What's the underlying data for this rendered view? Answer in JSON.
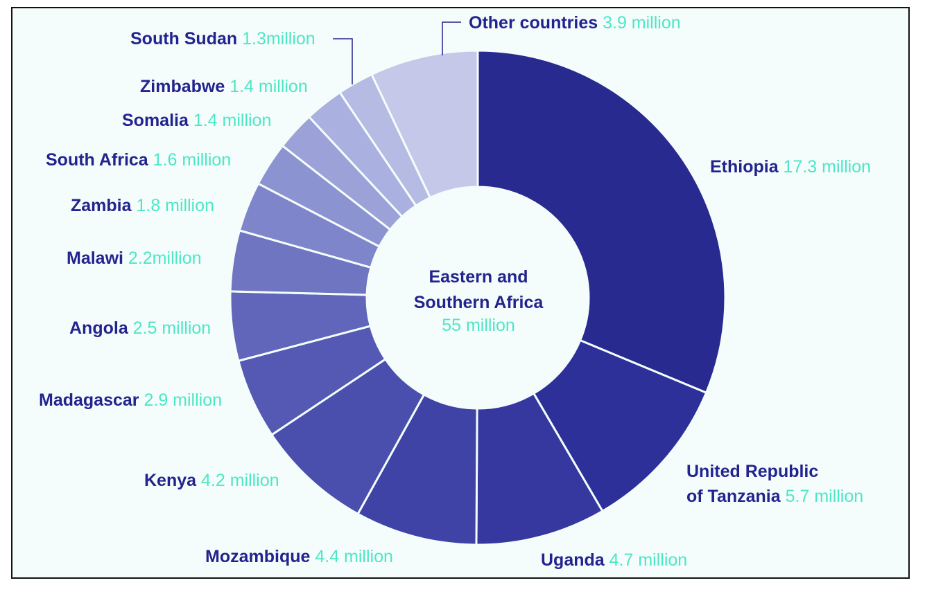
{
  "chart_data": {
    "type": "pie",
    "center_label": {
      "line1": "Eastern and",
      "line2": "Southern Africa",
      "value": "55 million",
      "total": 55
    },
    "slices": [
      {
        "name": "Ethiopia",
        "value_label": "17.3 million",
        "value": 17.3,
        "color": "#282a8f"
      },
      {
        "name": "United Republic of Tanzania",
        "name_lines": [
          "United Republic",
          "of Tanzania"
        ],
        "value_label": "5.7 million",
        "value": 5.7,
        "color": "#2e309a"
      },
      {
        "name": "Uganda",
        "value_label": "4.7 million",
        "value": 4.7,
        "color": "#3638a0"
      },
      {
        "name": "Mozambique",
        "value_label": "4.4 million",
        "value": 4.4,
        "color": "#3f43a6"
      },
      {
        "name": "Kenya",
        "value_label": "4.2 million",
        "value": 4.2,
        "color": "#4a4fae"
      },
      {
        "name": "Madagascar",
        "value_label": "2.9 million",
        "value": 2.9,
        "color": "#5559b3"
      },
      {
        "name": "Angola",
        "value_label": "2.5 million",
        "value": 2.5,
        "color": "#6166ba"
      },
      {
        "name": "Malawi",
        "value_label": "2.2million",
        "value": 2.2,
        "color": "#7075c2"
      },
      {
        "name": "Zambia",
        "value_label": "1.8 million",
        "value": 1.8,
        "color": "#7f85ca"
      },
      {
        "name": "South Africa",
        "value_label": "1.6 million",
        "value": 1.6,
        "color": "#8c93d1"
      },
      {
        "name": "Somalia",
        "value_label": "1.4 million",
        "value": 1.4,
        "color": "#9ca2d8"
      },
      {
        "name": "Zimbabwe",
        "value_label": "1.4 million",
        "value": 1.4,
        "color": "#aab0df"
      },
      {
        "name": "South Sudan",
        "value_label": "1.3million",
        "value": 1.3,
        "color": "#b5bbe3"
      },
      {
        "name": "Other countries",
        "value_label": "3.9 million",
        "value": 3.9,
        "color": "#c5c8e8"
      }
    ]
  }
}
